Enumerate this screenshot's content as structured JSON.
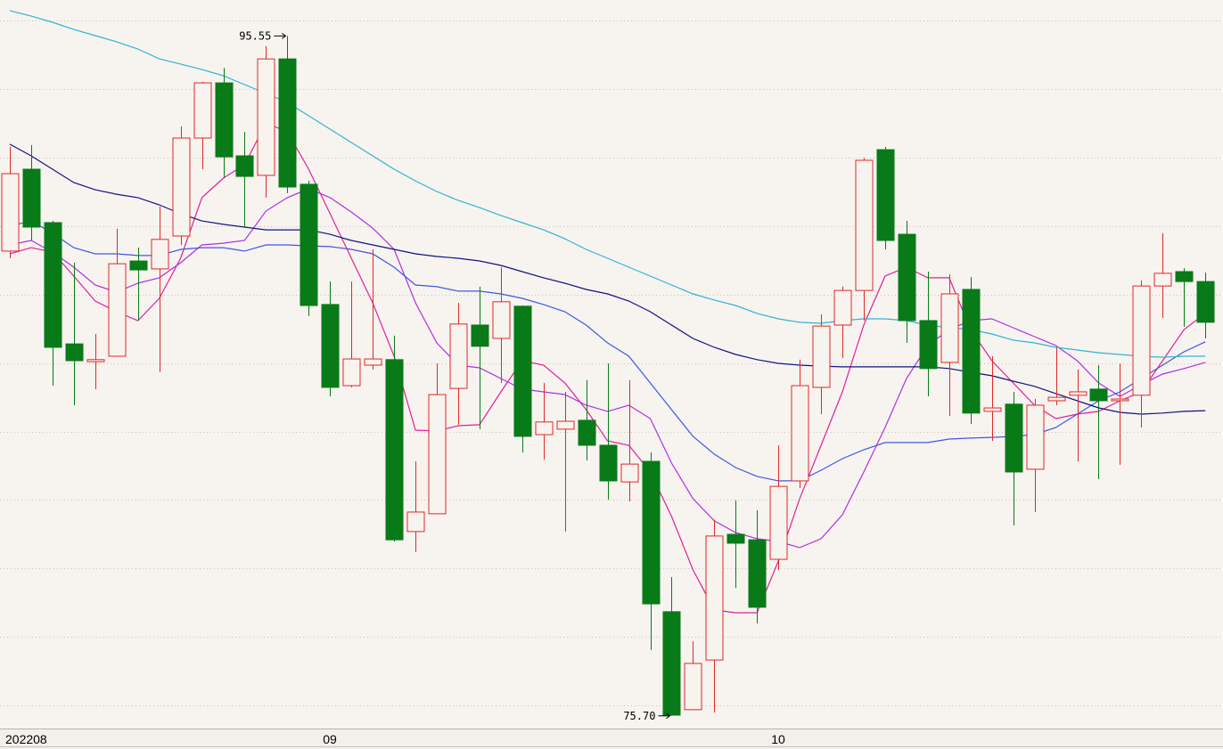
{
  "chart_data": {
    "type": "candlestick",
    "categories": [
      "202208",
      null,
      null,
      null,
      null,
      null,
      null,
      null,
      null,
      null,
      null,
      null,
      null,
      null,
      null,
      "09",
      null,
      null,
      null,
      null,
      null,
      null,
      null,
      null,
      null,
      null,
      null,
      null,
      null,
      null,
      null,
      null,
      null,
      null,
      null,
      null,
      "10",
      null,
      null,
      null,
      null,
      null,
      null,
      null,
      null,
      null,
      null,
      null,
      null,
      null,
      null,
      null,
      null,
      null,
      null,
      null,
      null
    ],
    "open": [
      89.27,
      91.66,
      90.1,
      86.56,
      86.04,
      86.2,
      88.98,
      88.75,
      89.71,
      92.57,
      94.18,
      92.05,
      91.48,
      94.88,
      91.22,
      87.71,
      85.34,
      85.94,
      86.1,
      81.08,
      81.6,
      85.26,
      87.11,
      86.72,
      87.66,
      83.91,
      84.07,
      84.33,
      83.6,
      82.53,
      83.13,
      78.74,
      75.88,
      77.33,
      81.0,
      80.84,
      80.27,
      82.56,
      85.29,
      87.11,
      88.12,
      92.23,
      89.76,
      87.24,
      86.02,
      88.15,
      84.59,
      84.8,
      82.9,
      84.9,
      85.06,
      85.24,
      84.9,
      85.06,
      88.25,
      88.67,
      88.38
    ],
    "high": [
      92.31,
      92.36,
      90.15,
      88.93,
      86.85,
      89.92,
      89.37,
      90.57,
      92.91,
      94.21,
      94.62,
      92.75,
      95.25,
      95.55,
      91.32,
      88.38,
      88.38,
      89.32,
      86.8,
      83.13,
      85.99,
      87.76,
      88.23,
      88.8,
      87.68,
      85.42,
      85.16,
      85.5,
      85.99,
      85.5,
      83.39,
      79.75,
      77.88,
      81.42,
      81.99,
      81.7,
      83.6,
      86.1,
      87.42,
      88.23,
      91.99,
      92.31,
      90.15,
      88.67,
      88.59,
      88.51,
      86.2,
      85.16,
      84.95,
      86.46,
      85.81,
      85.94,
      85.99,
      88.41,
      89.79,
      88.77,
      88.64
    ],
    "low": [
      89.06,
      89.58,
      85.34,
      84.77,
      85.24,
      86.2,
      87.24,
      85.73,
      89.45,
      91.66,
      91.4,
      89.97,
      90.83,
      90.96,
      87.37,
      85.03,
      85.29,
      85.81,
      80.79,
      80.48,
      81.6,
      84.2,
      84.07,
      85.42,
      83.39,
      83.18,
      81.08,
      83.16,
      82.01,
      81.96,
      77.62,
      75.7,
      75.88,
      75.8,
      79.44,
      78.4,
      79.96,
      82.35,
      84.51,
      86.15,
      87.24,
      89.32,
      86.59,
      85.03,
      84.46,
      84.22,
      83.73,
      81.26,
      81.65,
      84.77,
      83.13,
      82.61,
      83.03,
      84.12,
      87.32,
      87.06,
      86.72
    ],
    "close": [
      91.53,
      89.97,
      86.46,
      86.07,
      86.1,
      88.9,
      88.72,
      89.61,
      92.57,
      94.18,
      92.02,
      91.45,
      94.88,
      91.14,
      87.68,
      85.29,
      86.12,
      86.12,
      80.84,
      81.65,
      85.08,
      87.14,
      86.49,
      87.79,
      83.86,
      84.28,
      84.3,
      83.6,
      82.56,
      83.05,
      78.97,
      75.72,
      77.23,
      80.95,
      80.74,
      78.87,
      82.4,
      85.34,
      87.08,
      88.12,
      91.92,
      89.58,
      87.24,
      85.84,
      88.02,
      84.54,
      84.69,
      82.82,
      84.77,
      85.0,
      85.16,
      84.9,
      84.95,
      88.25,
      88.62,
      88.38,
      87.19
    ],
    "up_color": "#e02828",
    "down_color": "#087a18",
    "series": [
      {
        "color": "#e0209c",
        "values": [
          89.19,
          89.37,
          89.24,
          88.54,
          87.81,
          87.5,
          87.24,
          87.89,
          89.06,
          90.83,
          91.4,
          91.79,
          93.01,
          92.75,
          91.66,
          90.36,
          89.06,
          87.76,
          86.2,
          84.04,
          84.02,
          84.17,
          84.2,
          85.16,
          86.07,
          85.94,
          85.42,
          84.64,
          83.73,
          83.6,
          82.82,
          81.52,
          79.96,
          78.79,
          78.71,
          78.71,
          80.22,
          82.04,
          83.6,
          85.16,
          87.11,
          88.54,
          88.8,
          88.49,
          88.49,
          86.98,
          86.07,
          85.42,
          84.77,
          84.38,
          84.51,
          84.59,
          84.9,
          85.16,
          86.07,
          86.98,
          87.45
        ]
      },
      {
        "color": "#b030e0",
        "values": [
          89.45,
          89.58,
          89.24,
          88.8,
          88.28,
          88.07,
          88.33,
          88.49,
          88.93,
          89.45,
          89.5,
          89.58,
          90.44,
          90.83,
          91.09,
          90.83,
          90.41,
          89.94,
          89.32,
          87.76,
          86.59,
          85.94,
          85.86,
          85.55,
          85.24,
          85.16,
          85.08,
          84.77,
          84.59,
          84.77,
          84.38,
          83.08,
          82.04,
          81.39,
          81.05,
          80.87,
          80.79,
          80.61,
          80.87,
          81.57,
          82.82,
          84.12,
          85.55,
          86.51,
          86.98,
          87.24,
          87.29,
          87.03,
          86.77,
          86.51,
          86.07,
          85.42,
          85.03,
          85.37,
          85.68,
          85.84,
          86.02
        ]
      },
      {
        "color": "#4058e0",
        "values": [
          90.0,
          90.15,
          89.79,
          89.37,
          89.19,
          89.19,
          89.14,
          89.14,
          89.32,
          89.37,
          89.37,
          89.27,
          89.45,
          89.45,
          89.42,
          89.4,
          89.32,
          89.19,
          88.8,
          88.28,
          88.23,
          88.1,
          88.1,
          88.02,
          87.89,
          87.71,
          87.5,
          87.11,
          86.59,
          86.2,
          85.42,
          84.64,
          83.86,
          83.34,
          82.95,
          82.69,
          82.56,
          82.56,
          82.87,
          83.21,
          83.47,
          83.68,
          83.68,
          83.68,
          83.78,
          83.81,
          83.83,
          83.86,
          83.91,
          84.12,
          84.51,
          84.9,
          85.16,
          85.55,
          85.94,
          86.33,
          86.62
        ]
      },
      {
        "color": "#101480",
        "values": [
          92.39,
          92.05,
          91.66,
          91.27,
          91.06,
          90.93,
          90.83,
          90.62,
          90.36,
          90.15,
          90.05,
          89.97,
          89.89,
          89.89,
          89.89,
          89.76,
          89.58,
          89.45,
          89.32,
          89.19,
          89.11,
          89.06,
          88.98,
          88.85,
          88.67,
          88.49,
          88.33,
          88.15,
          88.02,
          87.81,
          87.5,
          87.11,
          86.72,
          86.46,
          86.25,
          86.1,
          85.99,
          85.94,
          85.91,
          85.89,
          85.89,
          85.89,
          85.89,
          85.89,
          85.84,
          85.73,
          85.63,
          85.47,
          85.32,
          85.11,
          84.9,
          84.69,
          84.56,
          84.51,
          84.54,
          84.59,
          84.61
        ]
      },
      {
        "color": "#30b4d0",
        "values": [
          96.29,
          96.13,
          95.95,
          95.74,
          95.56,
          95.38,
          95.17,
          94.88,
          94.73,
          94.57,
          94.39,
          94.13,
          93.87,
          93.61,
          93.22,
          92.83,
          92.44,
          92.05,
          91.66,
          91.32,
          91.01,
          90.75,
          90.54,
          90.31,
          90.1,
          89.89,
          89.63,
          89.32,
          89.06,
          88.8,
          88.54,
          88.28,
          88.02,
          87.84,
          87.68,
          87.45,
          87.29,
          87.19,
          87.16,
          87.24,
          87.29,
          87.29,
          87.24,
          87.11,
          87.03,
          86.98,
          86.85,
          86.67,
          86.59,
          86.46,
          86.38,
          86.3,
          86.25,
          86.2,
          86.17,
          86.2,
          86.2
        ]
      }
    ],
    "max_label": 95.55,
    "min_label": {
      "value": 75.7,
      "label": "75.70"
    },
    "ylim": [
      75.33,
      96.6
    ],
    "yticks": [
      76,
      78,
      80,
      82,
      84,
      86,
      88,
      90,
      92,
      94,
      96
    ],
    "grid": true
  }
}
